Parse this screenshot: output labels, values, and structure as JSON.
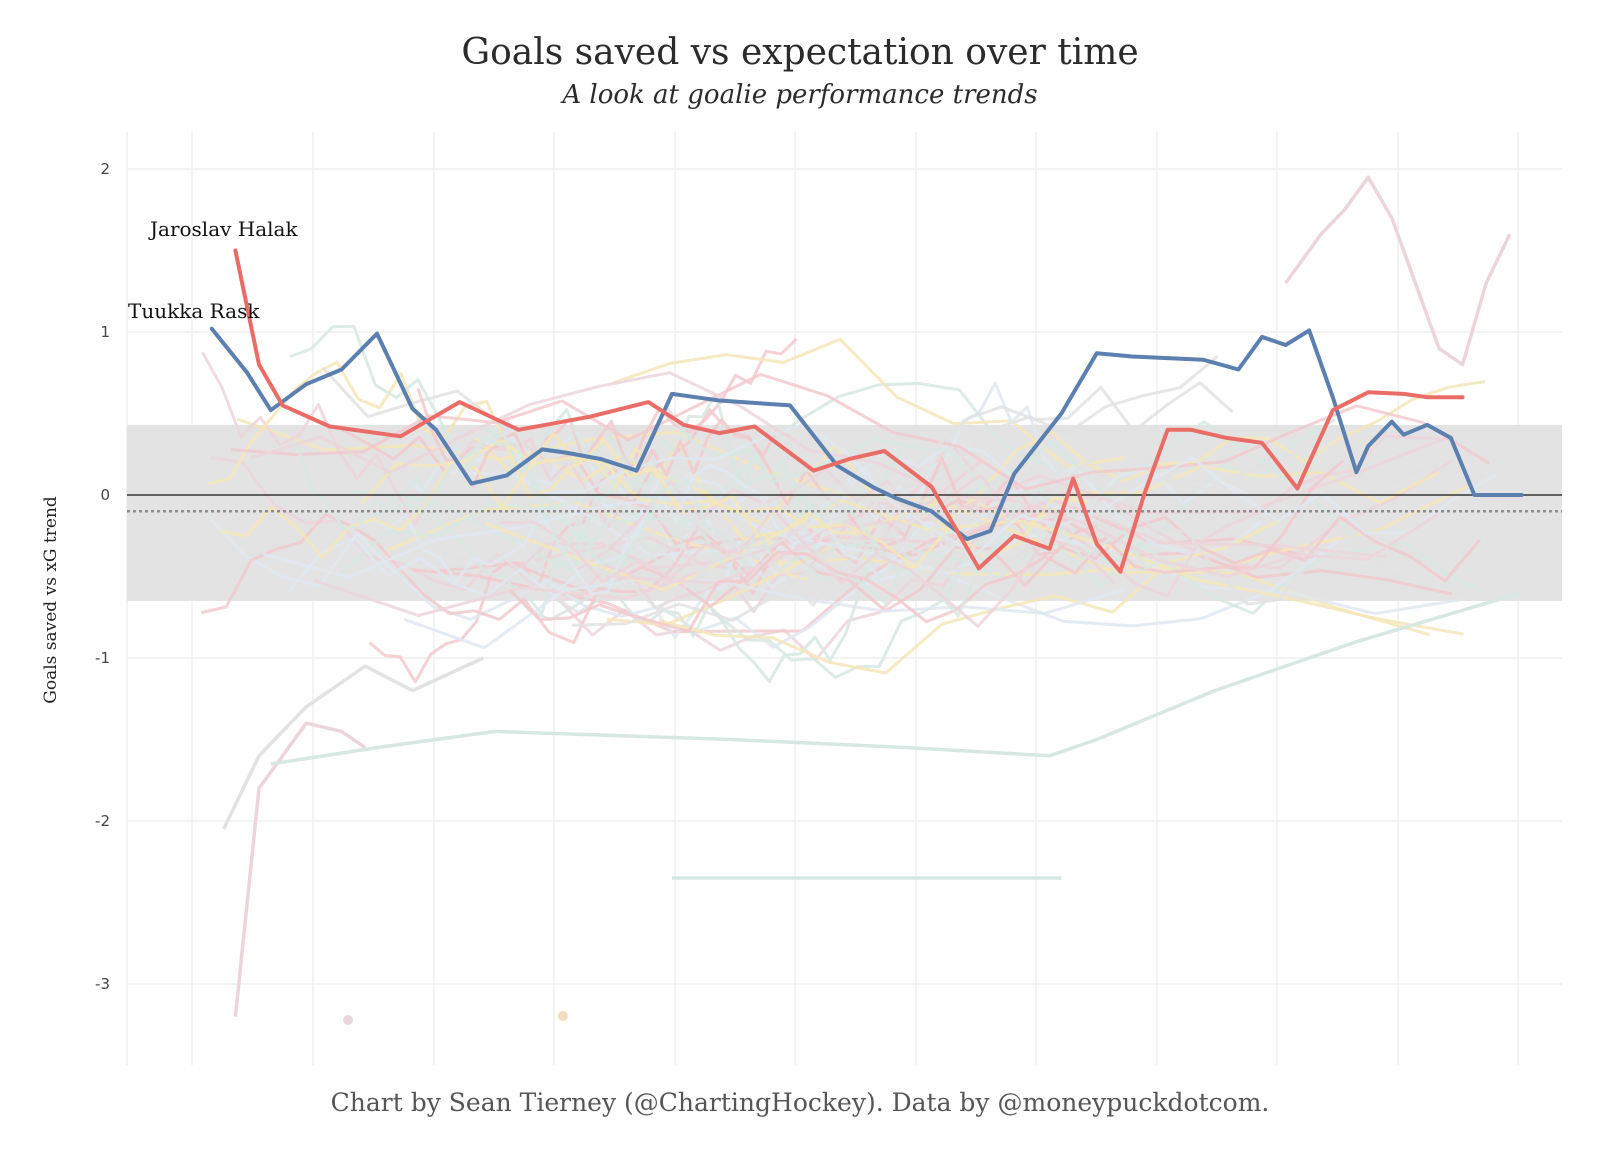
{
  "chart_data": {
    "type": "line",
    "title": "Goals saved vs expectation over time",
    "subtitle": "A look at goalie performance trends",
    "caption": "Chart by Sean Tierney (@ChartingHockey). Data by @moneypuckdotcom.",
    "xlabel": "",
    "ylabel": "Goals saved vs xG trend",
    "ylim": [
      -3.5,
      2.2
    ],
    "xlim": [
      0,
      100
    ],
    "yticks": [
      2,
      1,
      0,
      -1,
      -2,
      -3
    ],
    "ytick_labels": [
      "2",
      "1",
      "0",
      "-1",
      "-2",
      "-3"
    ],
    "grid": true,
    "band": {
      "from": -0.65,
      "to": 0.43,
      "color": "#e3e3e3"
    },
    "zero_line": 0,
    "mean_line": -0.1,
    "highlight_series": [
      {
        "name": "Tuukka Rask",
        "color": "#5b7faf",
        "x": [
          1,
          4,
          6,
          9,
          12,
          15,
          18,
          20,
          23,
          26,
          29,
          31,
          34,
          37,
          40,
          42,
          44,
          46,
          50,
          54,
          57,
          59,
          62,
          65,
          67,
          69,
          73,
          76,
          79,
          82,
          85,
          88,
          90,
          92,
          94,
          96,
          98,
          99,
          101,
          102,
          104,
          106,
          108,
          110,
          112
        ],
        "values": [
          1.02,
          0.75,
          0.52,
          0.68,
          0.77,
          0.99,
          0.53,
          0.4,
          0.07,
          0.12,
          0.28,
          0.26,
          0.22,
          0.15,
          0.62,
          0.6,
          0.58,
          0.57,
          0.55,
          0.18,
          0.05,
          -0.02,
          -0.1,
          -0.27,
          -0.22,
          0.13,
          0.5,
          0.87,
          0.85,
          0.84,
          0.83,
          0.77,
          0.97,
          0.92,
          1.01,
          0.6,
          0.14,
          0.3,
          0.45,
          0.37,
          0.43,
          0.35,
          0.0,
          0.0,
          0.0
        ]
      },
      {
        "name": "Jaroslav Halak",
        "color": "#ea6c66",
        "x": [
          3,
          5,
          7,
          11,
          17,
          22,
          27,
          33,
          38,
          41,
          44,
          47,
          52,
          55,
          58,
          62,
          66,
          69,
          72,
          74,
          76,
          78,
          80,
          82,
          84,
          87,
          90,
          93,
          96,
          99,
          102,
          104,
          107
        ],
        "values": [
          1.5,
          0.8,
          0.55,
          0.42,
          0.36,
          0.57,
          0.4,
          0.48,
          0.57,
          0.43,
          0.38,
          0.42,
          0.15,
          0.22,
          0.27,
          0.05,
          -0.45,
          -0.25,
          -0.33,
          0.1,
          -0.3,
          -0.47,
          0.0,
          0.4,
          0.4,
          0.35,
          0.32,
          0.04,
          0.52,
          0.63,
          0.62,
          0.6,
          0.6
        ]
      }
    ],
    "annotations": [
      "Jaroslav Halak",
      "Tuukka Rask"
    ],
    "background_series_count": 60,
    "background_colors": [
      "#f2c9cc",
      "#dfe7f0",
      "#f5e6b8",
      "#d7e7e3",
      "#e2e2e2",
      "#ecd5da"
    ]
  }
}
